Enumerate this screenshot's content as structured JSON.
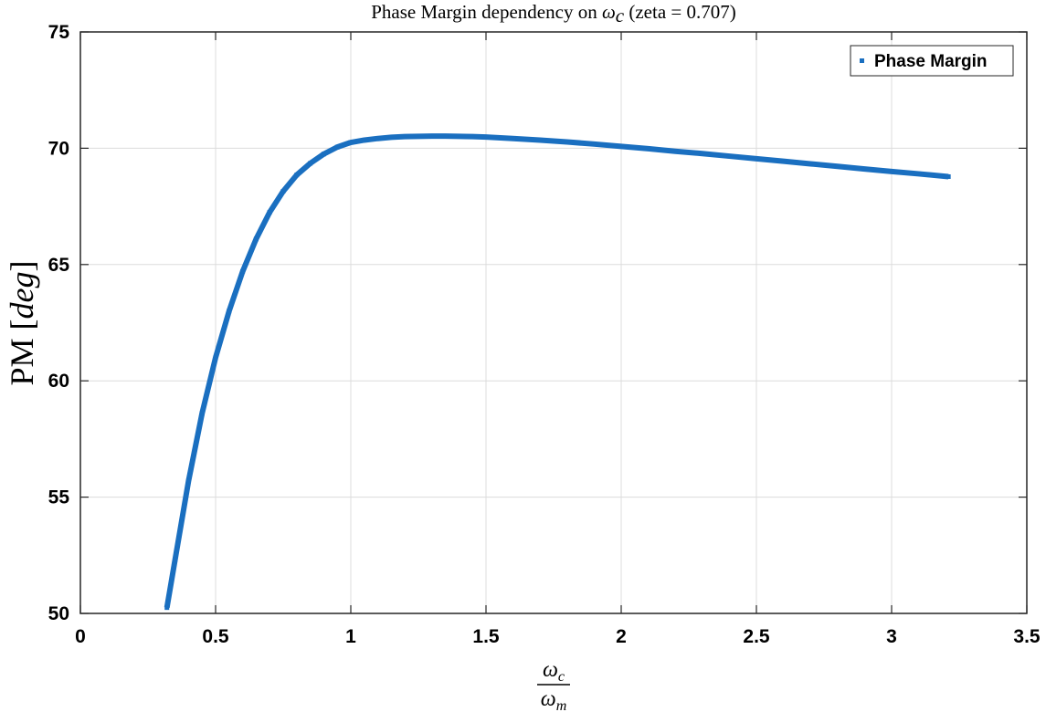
{
  "chart_data": {
    "type": "scatter",
    "title": {
      "text_before": "Phase Margin dependency on ",
      "symbol": "ω",
      "symbol_sub": "c",
      "text_after": " (zeta = 0.707)"
    },
    "xlabel": {
      "numerator": "ω",
      "numerator_sub": "c",
      "denominator": "ω",
      "denominator_sub": "m"
    },
    "ylabel": {
      "prefix": "PM [",
      "unit": "deg",
      "suffix": "]"
    },
    "xlim": [
      0,
      3.5
    ],
    "ylim": [
      50,
      75
    ],
    "xticks": [
      0,
      0.5,
      1,
      1.5,
      2,
      2.5,
      3,
      3.5
    ],
    "xtick_labels": [
      "0",
      "0.5",
      "1",
      "1.5",
      "2",
      "2.5",
      "3",
      "3.5"
    ],
    "yticks": [
      50,
      55,
      60,
      65,
      70,
      75
    ],
    "ytick_labels": [
      "50",
      "55",
      "60",
      "65",
      "70",
      "75"
    ],
    "grid": true,
    "legend": {
      "position": "top-right",
      "entries": [
        "Phase Margin"
      ]
    },
    "series": [
      {
        "name": "Phase Margin",
        "color": "#1a6fc0",
        "x": [
          0.32,
          0.35,
          0.4,
          0.45,
          0.5,
          0.55,
          0.6,
          0.65,
          0.7,
          0.75,
          0.8,
          0.85,
          0.9,
          0.95,
          1.0,
          1.05,
          1.1,
          1.15,
          1.2,
          1.25,
          1.3,
          1.35,
          1.4,
          1.45,
          1.5,
          1.6,
          1.7,
          1.8,
          1.9,
          2.0,
          2.1,
          2.2,
          2.3,
          2.4,
          2.5,
          2.6,
          2.7,
          2.8,
          2.9,
          3.0,
          3.1,
          3.21
        ],
        "y": [
          50.25,
          52.3,
          55.7,
          58.6,
          61.0,
          63.0,
          64.7,
          66.1,
          67.25,
          68.15,
          68.85,
          69.35,
          69.75,
          70.05,
          70.25,
          70.35,
          70.42,
          70.47,
          70.5,
          70.51,
          70.52,
          70.52,
          70.51,
          70.5,
          70.48,
          70.42,
          70.35,
          70.27,
          70.18,
          70.08,
          69.98,
          69.87,
          69.77,
          69.66,
          69.55,
          69.44,
          69.33,
          69.22,
          69.11,
          69.0,
          68.9,
          68.78
        ]
      }
    ]
  }
}
